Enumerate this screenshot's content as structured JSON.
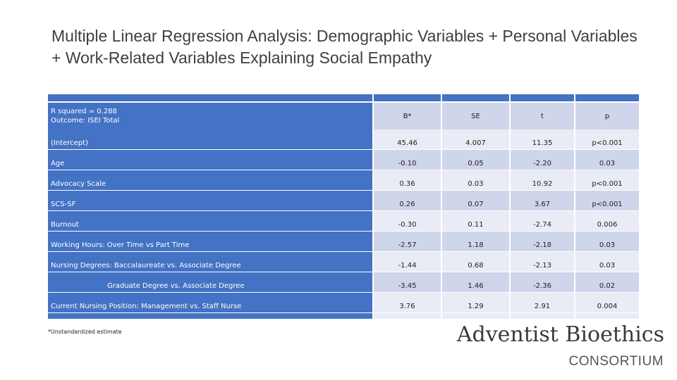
{
  "title": "Multiple Linear Regression Analysis: Demographic Variables + Personal Variables + Work-Related Variables Explaining Social Empathy",
  "table": {
    "header": {
      "model_line1": "R squared = 0.288",
      "model_line2": "Outcome: ISEI Total",
      "b": "B*",
      "se": "SE",
      "t": "t",
      "p": "p"
    },
    "rows": [
      {
        "label": "(Intercept)",
        "b": "45.46",
        "se": "4.007",
        "t": "11.35",
        "p": "p<0.001"
      },
      {
        "label": "Age",
        "b": "-0.10",
        "se": "0.05",
        "t": "-2.20",
        "p": "0.03"
      },
      {
        "label": "Advocacy Scale",
        "b": "0.36",
        "se": "0.03",
        "t": "10.92",
        "p": "p<0.001"
      },
      {
        "label": "SCS-SF",
        "b": "0.26",
        "se": "0.07",
        "t": "3.67",
        "p": "p<0.001"
      },
      {
        "label": "Burnout",
        "b": "-0.30",
        "se": "0.11",
        "t": "-2.74",
        "p": "0.006"
      },
      {
        "label": "Working Hours: Over Time vs Part Time",
        "b": "-2.57",
        "se": "1.18",
        "t": "-2.18",
        "p": "0.03"
      },
      {
        "label": "Nursing Degrees: Baccalaureate vs. Associate Degree",
        "b": "-1.44",
        "se": "0.68",
        "t": "-2.13",
        "p": "0.03"
      },
      {
        "label": "Graduate Degree vs. Associate Degree",
        "b": "-3.45",
        "se": "1.46",
        "t": "-2.36",
        "p": "0.02"
      },
      {
        "label": "Current Nursing Position: Management vs. Staff Nurse",
        "b": "3.76",
        "se": "1.29",
        "t": "2.91",
        "p": "0.004"
      }
    ]
  },
  "footnote": "*Unstandardized estimate",
  "logo": {
    "name": "Adventist Bioethics",
    "subtitle": "CONSORTIUM"
  },
  "colors": {
    "header_blue": "#4472c4",
    "row_light": "#e9ebf5",
    "row_dark": "#cfd5ea"
  }
}
